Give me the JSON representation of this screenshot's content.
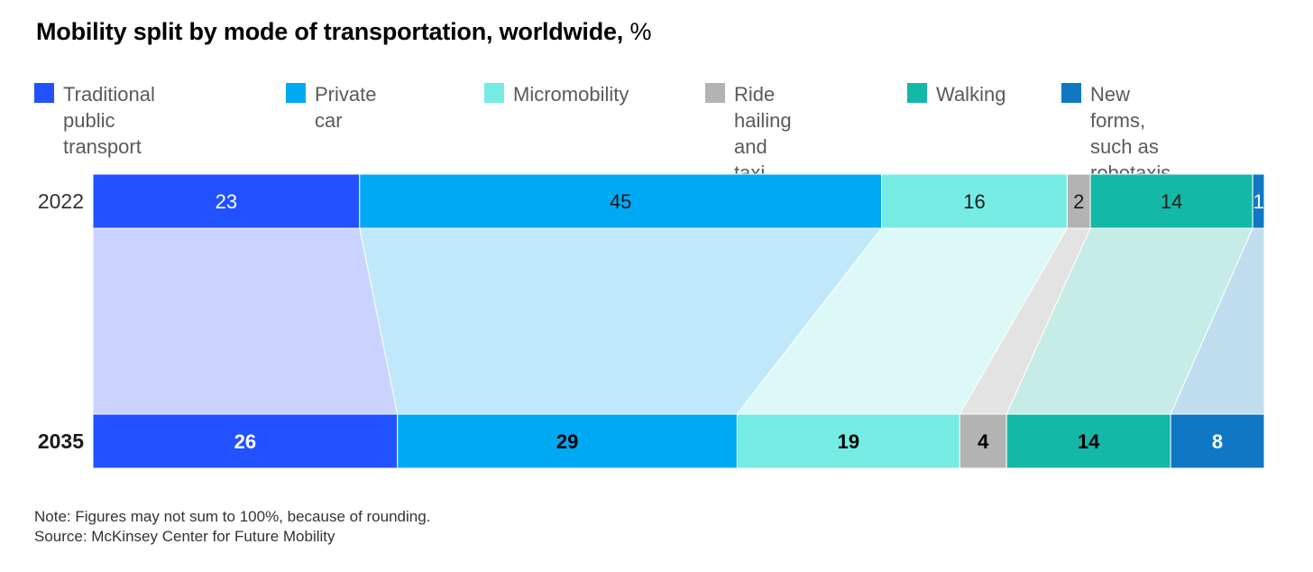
{
  "title": "Mobility split by mode of transportation, worldwide,",
  "title_unit": "%",
  "legend": [
    {
      "label": "Traditional\npublic transport",
      "color": "#2251ff",
      "icon": "legend-swatch"
    },
    {
      "label": "Private car",
      "color": "#00a9f4",
      "icon": "legend-swatch"
    },
    {
      "label": "Micromobility",
      "color": "#75ebe4",
      "icon": "legend-swatch"
    },
    {
      "label": "Ride hailing\nand taxi",
      "color": "#b3b3b3",
      "icon": "legend-swatch"
    },
    {
      "label": "Walking",
      "color": "#14b8a6",
      "icon": "legend-swatch"
    },
    {
      "label": "New forms,\nsuch as robotaxis",
      "color": "#1077c4",
      "icon": "legend-swatch"
    }
  ],
  "chart_data": {
    "type": "bar",
    "orientation": "horizontal",
    "stacked": true,
    "normalized": true,
    "categories": [
      "2022",
      "2035"
    ],
    "series": [
      {
        "name": "Traditional public transport",
        "values": [
          23,
          26
        ],
        "color": "#2251ff",
        "band_color": "#c9d3fd",
        "label_color": [
          "#ffffff",
          "#ffffff"
        ]
      },
      {
        "name": "Private car",
        "values": [
          45,
          29
        ],
        "color": "#00a9f4",
        "band_color": "#bfe8fa",
        "label_color": [
          "#1a1a1a",
          "#000000"
        ]
      },
      {
        "name": "Micromobility",
        "values": [
          16,
          19
        ],
        "color": "#75ebe4",
        "band_color": "#dcf9f7",
        "label_color": [
          "#1a1a1a",
          "#000000"
        ]
      },
      {
        "name": "Ride hailing and taxi",
        "values": [
          2,
          4
        ],
        "color": "#b3b3b3",
        "band_color": "#e3e3e3",
        "label_color": [
          "#1a1a1a",
          "#000000"
        ]
      },
      {
        "name": "Walking",
        "values": [
          14,
          14
        ],
        "color": "#14b8a6",
        "band_color": "#c5ece7",
        "label_color": [
          "#1a1a1a",
          "#000000"
        ]
      },
      {
        "name": "New forms, such as robotaxis",
        "values": [
          1,
          8
        ],
        "color": "#1077c4",
        "band_color": "#c0ddef",
        "label_color": [
          "#ffffff",
          "#ffffff"
        ]
      }
    ],
    "bold_categories": [
      "2035"
    ],
    "grid": false,
    "legend_position": "top"
  },
  "notes": {
    "note": "Note: Figures may not sum to 100%, because of rounding.",
    "source": "Source: McKinsey Center for Future Mobility"
  }
}
